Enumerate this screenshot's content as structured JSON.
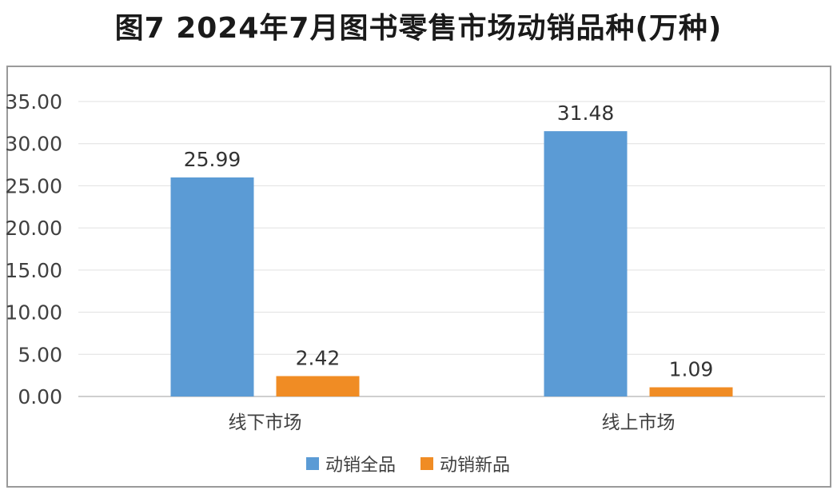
{
  "chart_data": {
    "type": "bar",
    "title": "图7  2024年7月图书零售市场动销品种(万种)",
    "categories": [
      "线下市场",
      "线上市场"
    ],
    "series": [
      {
        "name": "动销全品",
        "values": [
          25.99,
          31.48
        ],
        "color": "#5b9bd5"
      },
      {
        "name": "动销新品",
        "values": [
          2.42,
          1.09
        ],
        "color": "#f08c24"
      }
    ],
    "data_labels": [
      [
        "25.99",
        "31.48"
      ],
      [
        "2.42",
        "1.09"
      ]
    ],
    "ylim": [
      0,
      35
    ],
    "yticks": [
      "0.00",
      "5.00",
      "10.00",
      "15.00",
      "20.00",
      "25.00",
      "30.00",
      "35.00"
    ],
    "grid": true,
    "legend": "bottom",
    "xlabel": "",
    "ylabel": ""
  }
}
